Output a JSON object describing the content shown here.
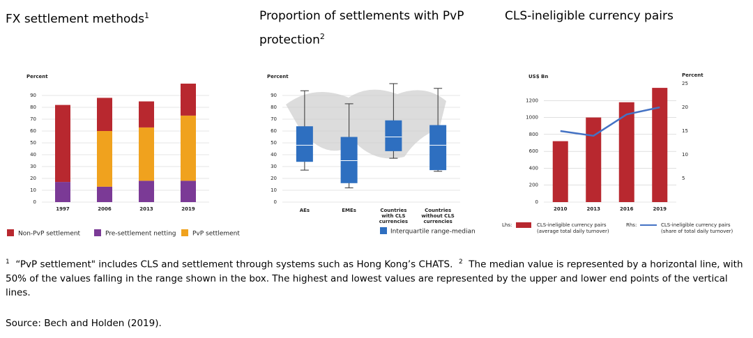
{
  "chart_data": [
    {
      "type": "stacked_bar",
      "title": "FX settlement methods",
      "title_note": "1",
      "y_label": "Percent",
      "categories": [
        "1997",
        "2006",
        "2013",
        "2019"
      ],
      "series": [
        {
          "name": "Pre-settlement netting",
          "color": "#7b3a96",
          "values": [
            17,
            13,
            18,
            18
          ]
        },
        {
          "name": "PvP settlement",
          "color": "#f0a21e",
          "values": [
            0,
            47,
            45,
            55
          ]
        },
        {
          "name": "Non-PvP settlement",
          "color": "#b8282f",
          "values": [
            65,
            28,
            22,
            27
          ]
        }
      ],
      "legend_order": [
        2,
        0,
        1
      ],
      "ylim": [
        0,
        100
      ],
      "yticks": [
        0,
        10,
        20,
        30,
        40,
        50,
        60,
        70,
        80,
        90
      ],
      "grid": true
    },
    {
      "type": "box",
      "title": "Proportion of settlements with PvP protection",
      "title_note": "2",
      "y_label": "Percent",
      "categories": [
        "AEs",
        "EMEs",
        "Countries with CLS currencies",
        "Countries without CLS currencies"
      ],
      "series": [
        {
          "name": "Interquartile range-median",
          "color": "#2e6fc0",
          "min": [
            27,
            12,
            37,
            26
          ],
          "q1": [
            34,
            16,
            43,
            27
          ],
          "median": [
            48,
            35,
            55,
            48
          ],
          "q3": [
            64,
            55,
            69,
            65
          ],
          "max": [
            94,
            83,
            100,
            96
          ]
        }
      ],
      "ylim": [
        0,
        100
      ],
      "yticks": [
        0,
        10,
        20,
        30,
        40,
        50,
        60,
        70,
        80,
        90
      ],
      "grid": true
    },
    {
      "type": "bar_line",
      "title": "CLS-ineligible currency pairs",
      "y_label": "US$ Bn",
      "y2_label": "Percent",
      "categories": [
        "2010",
        "2013",
        "2016",
        "2019"
      ],
      "series": [
        {
          "name": "CLS-ineligible currency pairs",
          "desc": "(average total daily turnover)",
          "prefix": "Lhs:",
          "color": "#b8282f",
          "values": [
            720,
            1000,
            1180,
            1350
          ]
        },
        {
          "name": "CLS-ineligible currency pairs",
          "desc": "(share of total daily turnover)",
          "prefix": "Rhs:",
          "color": "#4472c4",
          "axis": "y2",
          "values": [
            15,
            14,
            18.5,
            20
          ]
        }
      ],
      "ylim": [
        0,
        1400
      ],
      "yticks": [
        0,
        200,
        400,
        600,
        800,
        1000,
        1200
      ],
      "y2lim": [
        0,
        25
      ],
      "y2ticks": [
        5,
        10,
        15,
        20,
        25
      ],
      "grid": true
    }
  ],
  "footnotes": [
    {
      "marker": "1",
      "text": "“PvP settlement\" includes CLS and settlement through systems such as Hong Kong’s CHATS."
    },
    {
      "marker": "2",
      "text": "The median value is represented by a horizontal line, with 50% of the values falling in the range shown in the box. The highest and lowest values are represented by the upper and lower end points of the vertical lines."
    }
  ],
  "source": "Source: Bech and Holden (2019)."
}
